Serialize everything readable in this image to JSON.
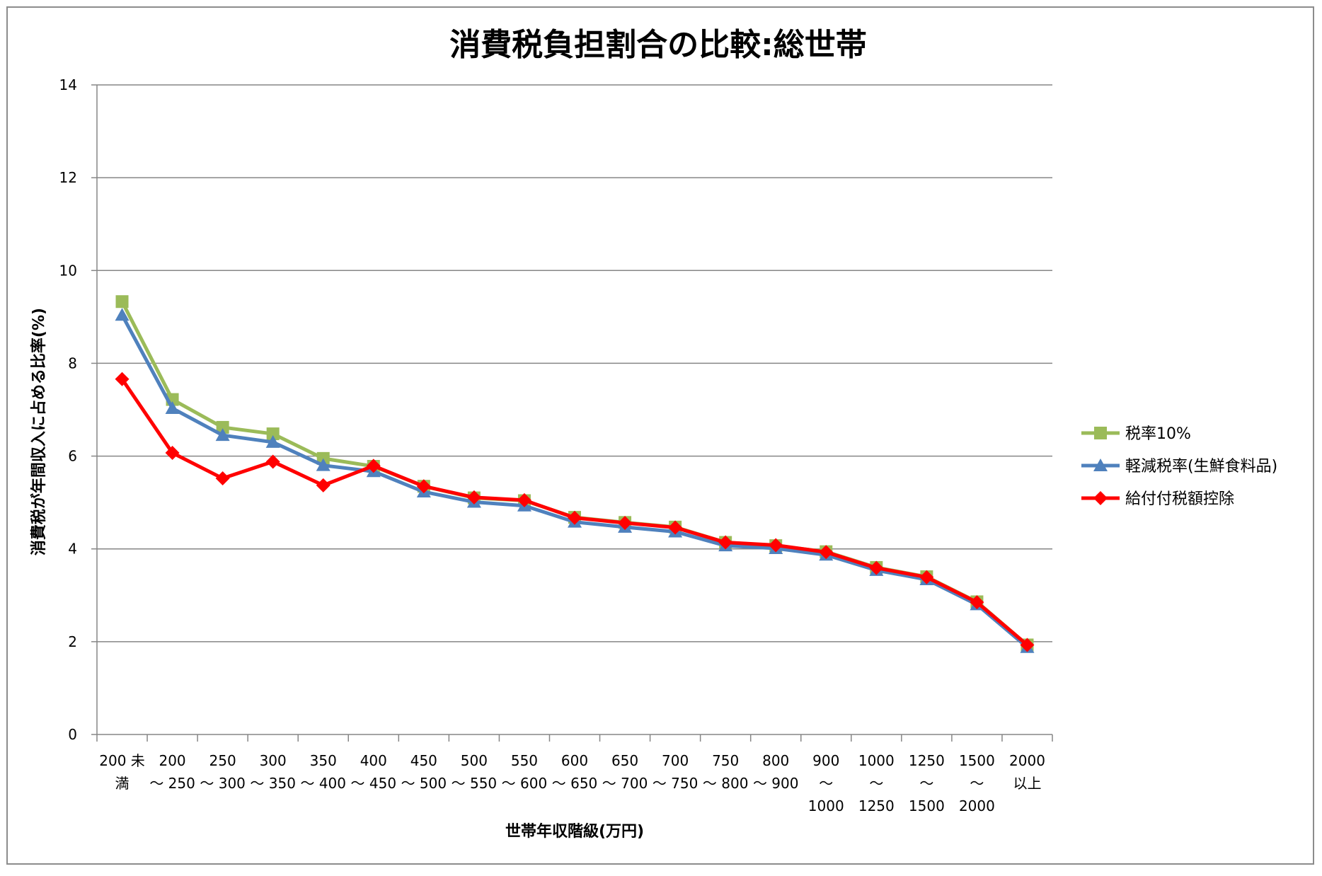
{
  "chart_data": {
    "type": "line",
    "title": "消費税負担割合の比較:総世帯",
    "xlabel": "世帯年収階級(万円)",
    "ylabel": "消費税が年間収入に占める比率(%)",
    "ylim": [
      0,
      14
    ],
    "yticks": [
      "0",
      "2",
      "4",
      "6",
      "8",
      "10",
      "12",
      "14"
    ],
    "grid": true,
    "legend_position": "right",
    "categories": [
      [
        "200 未",
        "満"
      ],
      [
        "200",
        "～ 250"
      ],
      [
        "250",
        "～ 300"
      ],
      [
        "300",
        "～ 350"
      ],
      [
        "350",
        "～ 400"
      ],
      [
        "400",
        "～ 450"
      ],
      [
        "450",
        "～ 500"
      ],
      [
        "500",
        "～ 550"
      ],
      [
        "550",
        "～ 600"
      ],
      [
        "600",
        "～ 650"
      ],
      [
        "650",
        "～ 700"
      ],
      [
        "700",
        "～ 750"
      ],
      [
        "750",
        "～ 800"
      ],
      [
        "800",
        "～ 900"
      ],
      [
        "900",
        "～",
        "1000"
      ],
      [
        "1000",
        "～",
        "1250"
      ],
      [
        "1250",
        "～",
        "1500"
      ],
      [
        "1500",
        "～",
        "2000"
      ],
      [
        "2000",
        "以上"
      ]
    ],
    "series": [
      {
        "name": "税率10%",
        "color": "#9bbb59",
        "marker": "square",
        "values": [
          9.33,
          7.22,
          6.62,
          6.48,
          5.95,
          5.78,
          5.35,
          5.1,
          5.04,
          4.68,
          4.57,
          4.47,
          4.14,
          4.07,
          3.94,
          3.6,
          3.4,
          2.86,
          1.93
        ]
      },
      {
        "name": "軽減税率(生鮮食料品)",
        "color": "#4f81bd",
        "marker": "triangle",
        "values": [
          9.04,
          7.03,
          6.45,
          6.3,
          5.8,
          5.67,
          5.23,
          5.01,
          4.93,
          4.58,
          4.47,
          4.37,
          4.07,
          4.01,
          3.87,
          3.54,
          3.34,
          2.8,
          1.88
        ]
      },
      {
        "name": "給付付税額控除",
        "color": "#ff0000",
        "marker": "diamond",
        "values": [
          7.66,
          6.07,
          5.52,
          5.88,
          5.37,
          5.79,
          5.35,
          5.11,
          5.05,
          4.67,
          4.56,
          4.46,
          4.14,
          4.08,
          3.93,
          3.59,
          3.39,
          2.85,
          1.93
        ]
      }
    ]
  }
}
